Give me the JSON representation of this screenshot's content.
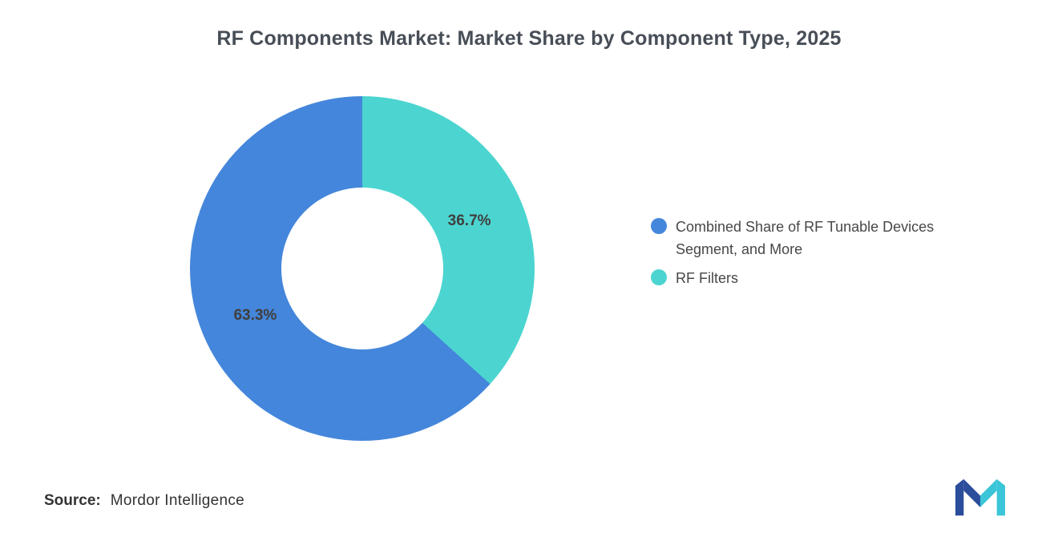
{
  "chart_data": {
    "type": "pie",
    "donut": true,
    "title": "RF Components Market: Market Share by Component Type, 2025",
    "slices": [
      {
        "label": "Combined Share of RF Tunable Devices Segment, and More",
        "value": 63.3,
        "display": "63.3%",
        "color": "#4486DB"
      },
      {
        "label": "RF Filters",
        "value": 36.7,
        "display": "36.7%",
        "color": "#4CD5D0"
      }
    ],
    "draw_order": [
      1,
      0
    ],
    "start_angle_deg": 0,
    "legend_position": "right",
    "label_color": "#3F3F3F",
    "grid": false
  },
  "legend": {
    "items": [
      {
        "label": "Combined Share of RF Tunable Devices Segment, and More"
      },
      {
        "label": "RF Filters"
      }
    ]
  },
  "source": {
    "label": "Source:",
    "value": "Mordor Intelligence"
  },
  "logo": {
    "name": "mordor-intelligence-logo",
    "navy": "#2B4D9B",
    "teal": "#3BC5D8"
  },
  "colors": {
    "background": "#FFFFFF",
    "title": "#484E57"
  }
}
